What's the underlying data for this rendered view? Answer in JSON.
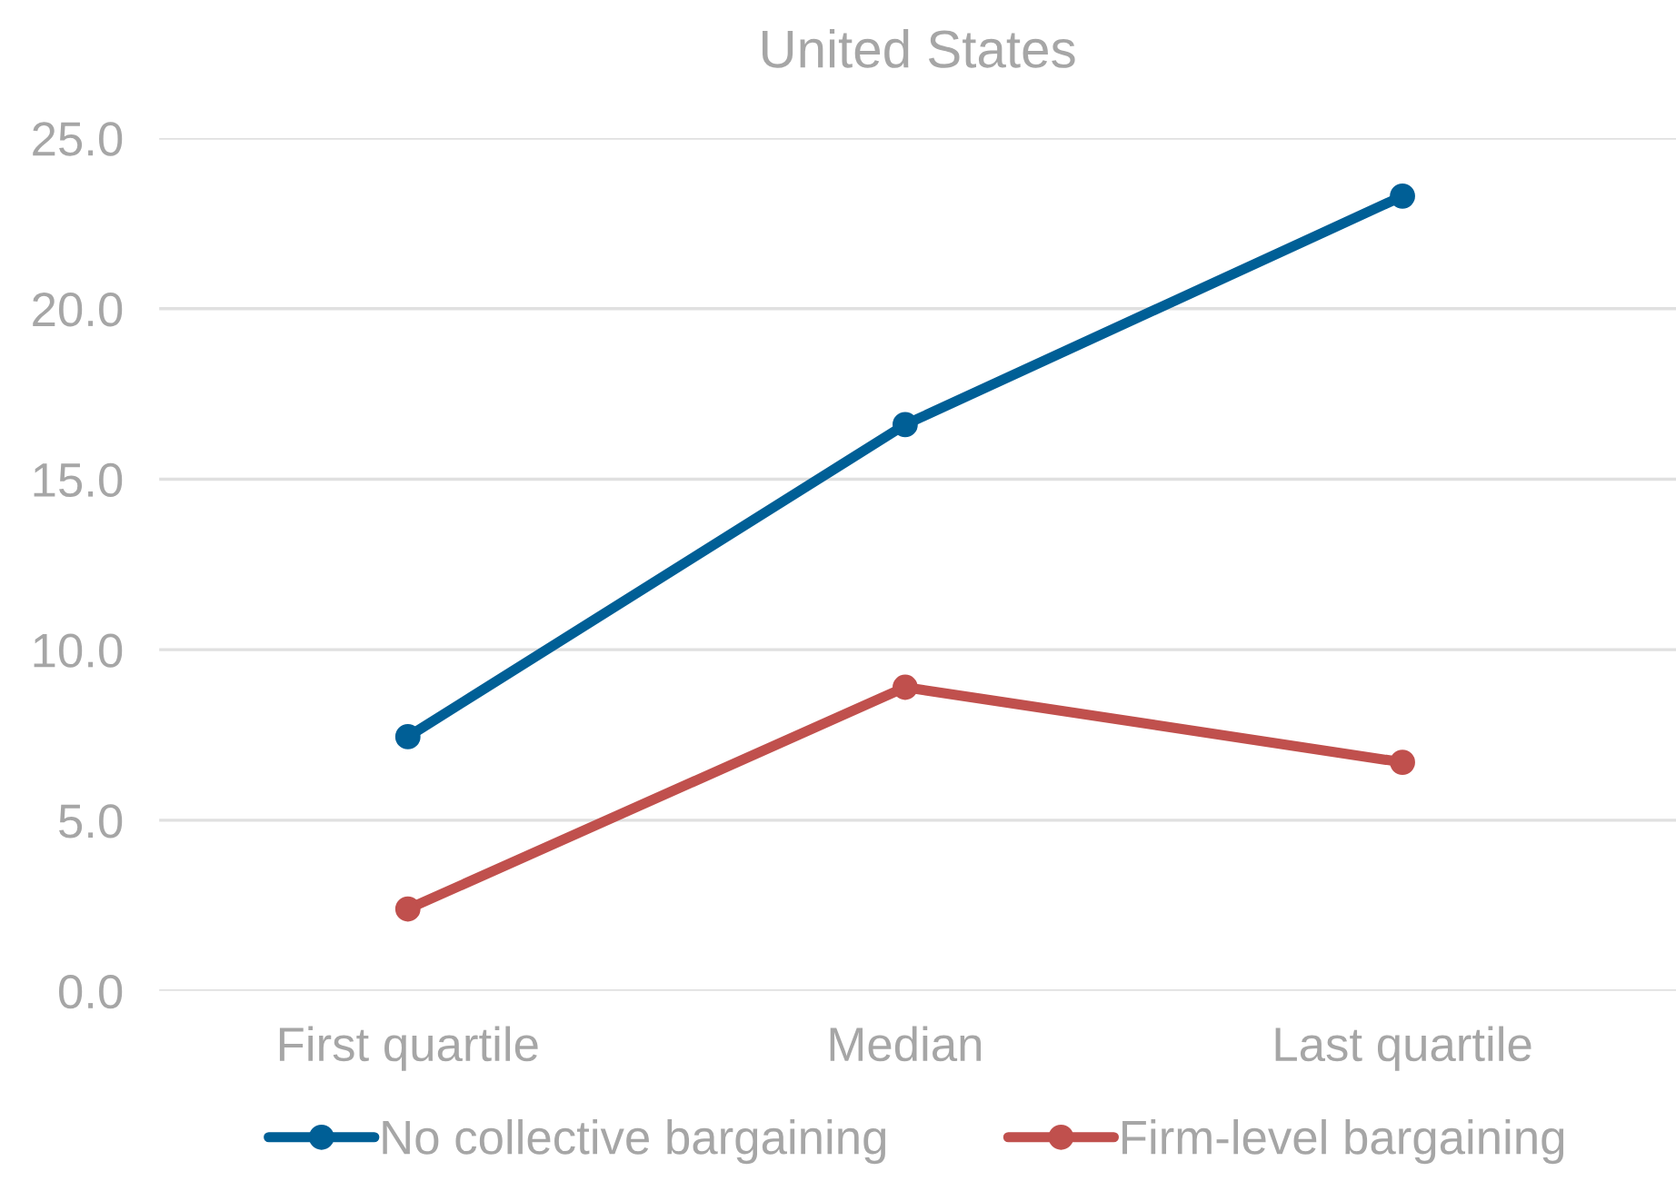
{
  "chart_data": {
    "type": "line",
    "title": "United States",
    "categories": [
      "First quartile",
      "Median",
      "Last quartile"
    ],
    "series": [
      {
        "name": "No collective bargaining",
        "color": "#005f96",
        "values": [
          7.45,
          16.6,
          23.3
        ]
      },
      {
        "name": "Firm-level bargaining",
        "color": "#c0504d",
        "values": [
          2.4,
          8.9,
          6.7
        ]
      }
    ],
    "ylim": [
      0,
      25
    ],
    "yticks": [
      {
        "value": 0,
        "label": "0.0"
      },
      {
        "value": 5,
        "label": "5.0"
      },
      {
        "value": 10,
        "label": "10.0"
      },
      {
        "value": 15,
        "label": "15.0"
      },
      {
        "value": 20,
        "label": "20.0"
      },
      {
        "value": 25,
        "label": "25.0"
      }
    ],
    "grid": "y",
    "legend": "bottom",
    "marker": "circle",
    "line_style": "solid"
  }
}
